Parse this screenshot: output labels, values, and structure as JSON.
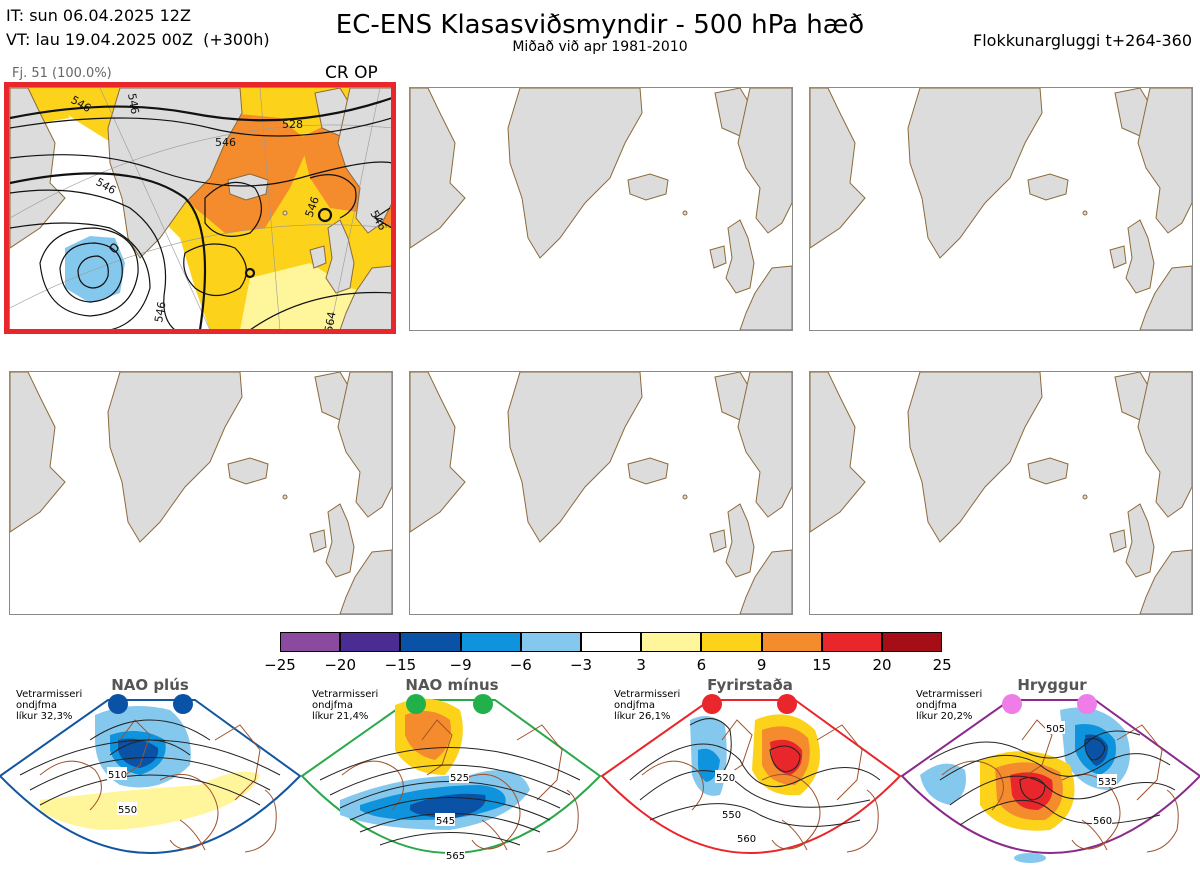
{
  "header": {
    "it_line": "IT: sun 06.04.2025 12Z",
    "vt_line": "VT: lau 19.04.2025 00Z  (+300h)",
    "title": "EC-ENS Klasasviðsmyndir - 500 hPa hæð",
    "subtitle": "Miðað við apr 1981-2010",
    "window": "Flokkunargluggi t+264-360"
  },
  "cluster": {
    "label": "Fj. 51 (100.0%)",
    "tag": "CR OP",
    "contour_labels": [
      "546",
      "528",
      "546",
      "546",
      "546",
      "546",
      "546",
      "564",
      "546"
    ]
  },
  "colorbar": {
    "ticks": [
      "−25",
      "−20",
      "−15",
      "−9",
      "−6",
      "−3",
      "3",
      "6",
      "9",
      "15",
      "20",
      "25"
    ],
    "colors": [
      "#8b4aa0",
      "#4a2c93",
      "#0a52a5",
      "#0f93dc",
      "#85c8ee",
      "#ffffff",
      "#fff59a",
      "#fdd21b",
      "#f48b2d",
      "#e8262c",
      "#a50d17"
    ]
  },
  "regimes": [
    {
      "name": "NAO plús",
      "season": "Vetrarmisseri",
      "period": "ondjfma",
      "prob": "líkur 32,3%",
      "dot_color": "#0a52a5",
      "border": "#1255a0",
      "labels": [
        "510",
        "550"
      ]
    },
    {
      "name": "NAO mínus",
      "season": "Vetrarmisseri",
      "period": "ondjfma",
      "prob": "líkur 21,4%",
      "dot_color": "#22b04b",
      "border": "#2aa84a",
      "labels": [
        "525",
        "545",
        "565"
      ]
    },
    {
      "name": "Fyrirstaða",
      "season": "Vetrarmisseri",
      "period": "ondjfma",
      "prob": "líkur 26,1%",
      "dot_color": "#e8262c",
      "border": "#e8262c",
      "labels": [
        "520",
        "550",
        "560"
      ]
    },
    {
      "name": "Hryggur",
      "season": "Vetrarmisseri",
      "period": "ondjfma",
      "prob": "líkur 20,2%",
      "dot_color": "#ee7de8",
      "border": "#8a2a8a",
      "labels": [
        "505",
        "535",
        "560"
      ]
    }
  ]
}
